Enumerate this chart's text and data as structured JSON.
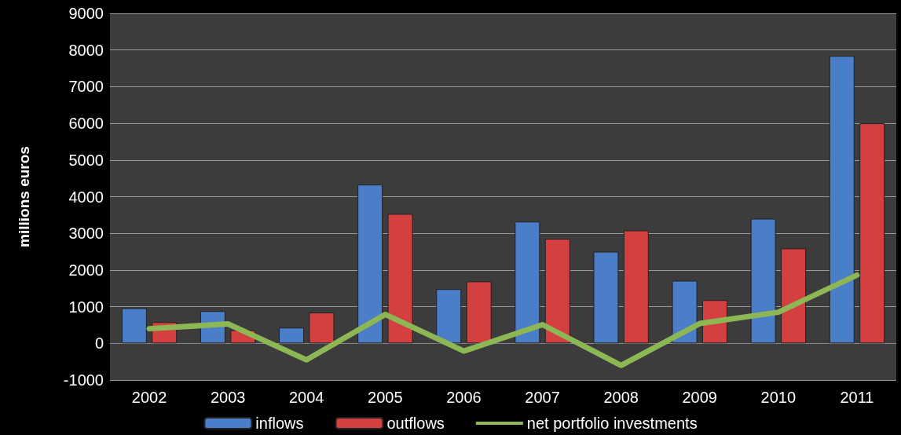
{
  "chart_data": {
    "type": "bar",
    "ylabel": "millions euros",
    "categories": [
      "2002",
      "2003",
      "2004",
      "2005",
      "2006",
      "2007",
      "2008",
      "2009",
      "2010",
      "2011"
    ],
    "series": [
      {
        "name": "inflows",
        "color": "#4a7ec8",
        "values": [
          960,
          880,
          430,
          4330,
          1480,
          3320,
          2500,
          1710,
          3400,
          7840
        ]
      },
      {
        "name": "outflows",
        "color": "#d43f3f",
        "values": [
          580,
          360,
          840,
          3530,
          1690,
          2850,
          3080,
          1180,
          2590,
          6000
        ]
      },
      {
        "name": "net portfolio investments",
        "type": "line",
        "color": "#8db654",
        "values": [
          400,
          530,
          -450,
          790,
          -210,
          510,
          -600,
          540,
          850,
          1860
        ]
      }
    ],
    "ylim": [
      -1000,
      9000
    ],
    "yticks": [
      -1000,
      0,
      1000,
      2000,
      3000,
      4000,
      5000,
      6000,
      7000,
      8000,
      9000
    ],
    "grid": "y",
    "legend": "bottom",
    "marker": "none"
  }
}
